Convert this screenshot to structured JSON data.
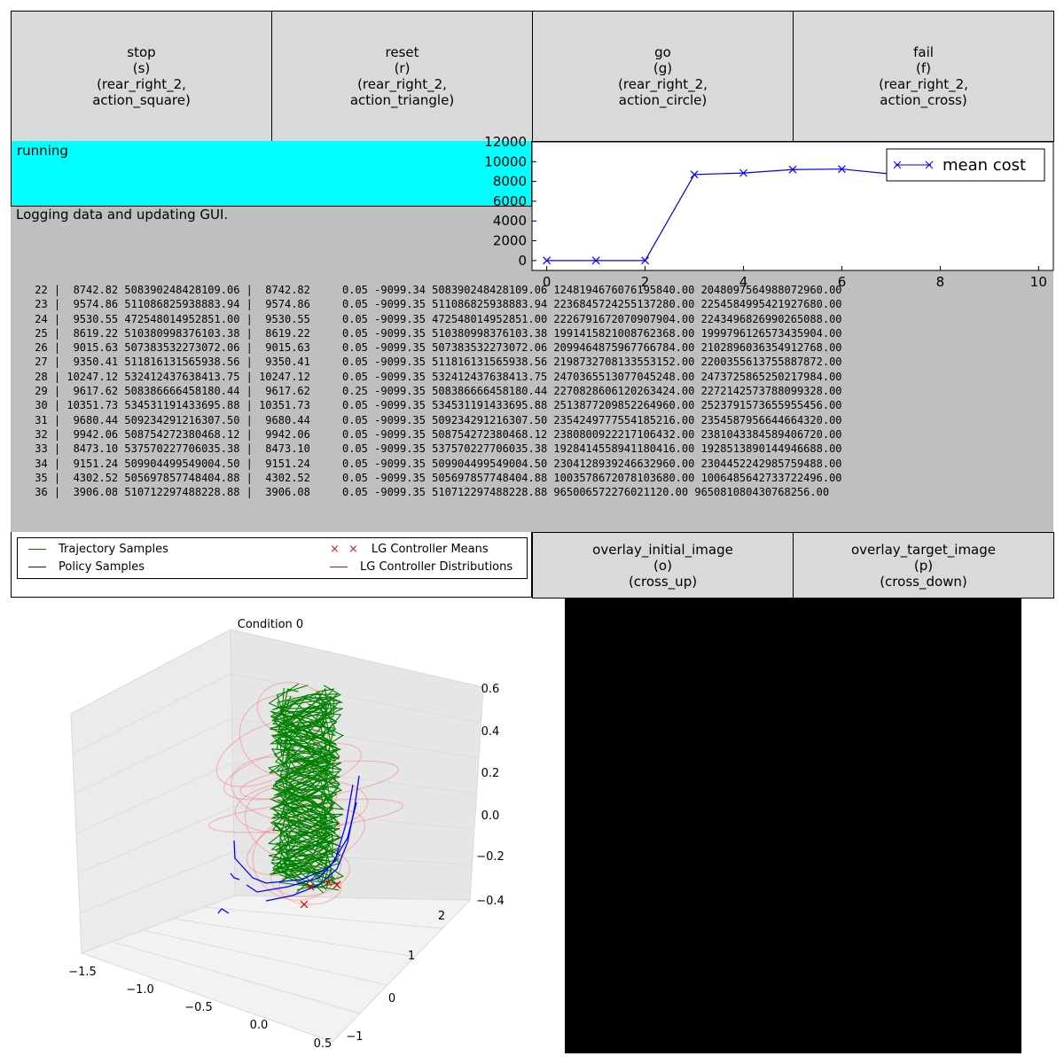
{
  "buttons": [
    {
      "name": "stop",
      "lines": [
        "stop",
        "(s)",
        "(rear_right_2,",
        "action_square)"
      ]
    },
    {
      "name": "reset",
      "lines": [
        "reset",
        "(r)",
        "(rear_right_2,",
        "action_triangle)"
      ]
    },
    {
      "name": "go",
      "lines": [
        "go",
        "(g)",
        "(rear_right_2,",
        "action_circle)"
      ]
    },
    {
      "name": "fail",
      "lines": [
        "fail",
        "(f)",
        "(rear_right_2,",
        "action_cross)"
      ]
    }
  ],
  "image_buttons": [
    {
      "name": "overlay-initial-image",
      "lines": [
        "overlay_initial_image",
        "(o)",
        "(cross_up)"
      ]
    },
    {
      "name": "overlay-target-image",
      "lines": [
        "overlay_target_image",
        "(p)",
        "(cross_down)"
      ]
    }
  ],
  "status": {
    "text": "running",
    "color": "#00ffff"
  },
  "log": {
    "message": "Logging data and updating GUI.",
    "rows": [
      " 22 |  8742.82 508390248428109.06 |  8742.82     0.05 -9099.34 508390248428109.06 1248194676076195840.00 2048097564988072960.00",
      " 23 |  9574.86 511086825938883.94 |  9574.86     0.05 -9099.35 511086825938883.94 2236845724255137280.00 2254584995421927680.00",
      " 24 |  9530.55 472548014952851.00 |  9530.55     0.05 -9099.35 472548014952851.00 2226791672070907904.00 2243496826990265088.00",
      " 25 |  8619.22 510380998376103.38 |  8619.22     0.05 -9099.35 510380998376103.38 1991415821008762368.00 1999796126573435904.00",
      " 26 |  9015.63 507383532273072.06 |  9015.63     0.05 -9099.35 507383532273072.06 2099464875967766784.00 2102896036354912768.00",
      " 27 |  9350.41 511816131565938.56 |  9350.41     0.05 -9099.35 511816131565938.56 2198732708133553152.00 2200355613755887872.00",
      " 28 | 10247.12 532412437638413.75 | 10247.12     0.05 -9099.35 532412437638413.75 2470365513077045248.00 2473725865250217984.00",
      " 29 |  9617.62 508386666458180.44 |  9617.62     0.25 -9099.35 508386666458180.44 2270828606120263424.00 2272142573788099328.00",
      " 30 | 10351.73 534531191433695.88 | 10351.73     0.05 -9099.35 534531191433695.88 2513877209852264960.00 2523791573655955456.00",
      " 31 |  9680.44 509234291216307.50 |  9680.44     0.05 -9099.35 509234291216307.50 2354249777554185216.00 2354587956644664320.00",
      " 32 |  9942.06 508754272380468.12 |  9942.06     0.05 -9099.35 508754272380468.12 2380800922217106432.00 2381043384589406720.00",
      " 33 |  8473.10 537570227706035.38 |  8473.10     0.05 -9099.35 537570227706035.38 1928414558941180416.00 1928513890144946688.00",
      " 34 |  9151.24 509904499549004.50 |  9151.24     0.05 -9099.35 509904499549004.50 2304128939246632960.00 2304452242985759488.00",
      " 35 |  4302.52 505697857748404.88 |  4302.52     0.05 -9099.35 505697857748404.88 1003578672078103680.00 1006485642733722496.00",
      " 36 |  3906.08 510712297488228.88 |  3906.08     0.05 -9099.35 510712297488228.88 965006572276021120.00 965081080430768256.00"
    ]
  },
  "chart_data": [
    {
      "type": "line",
      "series": [
        {
          "name": "mean cost",
          "x": [
            0,
            1,
            2,
            3,
            4,
            5,
            6,
            7,
            8,
            9,
            10
          ],
          "y": [
            0,
            0,
            0,
            8700,
            8850,
            9200,
            9250,
            8750,
            8800,
            8750,
            8700
          ],
          "color": "#0000ff",
          "marker": "x"
        }
      ],
      "xlim": [
        -0.3,
        10.3
      ],
      "ylim": [
        -1000,
        12000
      ],
      "xticks": [
        0,
        2,
        4,
        6,
        8,
        10
      ],
      "yticks": [
        0,
        2000,
        4000,
        6000,
        8000,
        10000,
        12000
      ],
      "legend": "top-right"
    },
    {
      "type": "line3d",
      "title": "Condition 0",
      "legend": [
        "Trajectory Samples",
        "Policy Samples",
        "LG Controller Means",
        "LG Controller Distributions"
      ],
      "legend_colors": [
        "#008000",
        "#0000ff",
        "#ff0000",
        "#ff0000"
      ],
      "xticks": [
        "−1.5",
        "−1.0",
        "−0.5",
        "0.0",
        "0.5"
      ],
      "yticks": [
        "−1",
        "0",
        "1",
        "2"
      ],
      "zticks": [
        "−0.4",
        "−0.2",
        "0.0",
        "0.2",
        "0.4",
        "0.6"
      ]
    }
  ]
}
